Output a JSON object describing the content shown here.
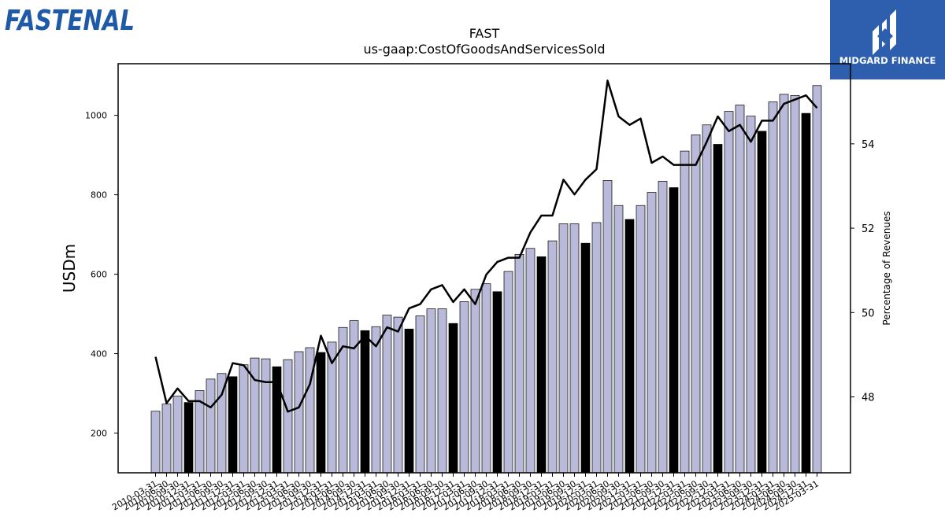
{
  "brand": {
    "left_logo_text": "FASTENAL",
    "right_logo_text": "MIDGARD FINANCE",
    "right_logo_bg": "#2d5fae"
  },
  "chart_data": {
    "type": "bar",
    "title": "FAST",
    "subtitle": "us-gaap:CostOfGoodsAndServicesSold",
    "ylabel": "USDm",
    "y2label": "Percentage of Revenues",
    "ylim": [
      100,
      1130
    ],
    "y2lim": [
      46.2,
      55.9
    ],
    "yticks": [
      200,
      400,
      600,
      800,
      1000
    ],
    "y2ticks": [
      48,
      50,
      52,
      54
    ],
    "bar_color": "#b9b9d9",
    "highlight_color": "#000000",
    "line_color": "#000000",
    "categories": [
      "2010-03-31",
      "2010-06-30",
      "2010-09-30",
      "2010-12-31",
      "2011-03-31",
      "2011-06-30",
      "2011-09-30",
      "2011-12-31",
      "2012-03-31",
      "2012-06-30",
      "2012-09-30",
      "2012-12-31",
      "2013-03-31",
      "2013-06-30",
      "2013-09-30",
      "2013-12-31",
      "2014-03-31",
      "2014-06-30",
      "2014-09-30",
      "2014-12-31",
      "2015-03-31",
      "2015-06-30",
      "2015-09-30",
      "2015-12-31",
      "2016-03-31",
      "2016-06-30",
      "2016-09-30",
      "2016-12-31",
      "2017-03-31",
      "2017-06-30",
      "2017-09-30",
      "2017-12-31",
      "2018-03-31",
      "2018-06-30",
      "2018-09-30",
      "2018-12-31",
      "2019-03-31",
      "2019-06-30",
      "2019-09-30",
      "2019-12-31",
      "2020-03-31",
      "2020-06-30",
      "2020-09-30",
      "2020-12-31",
      "2021-03-31",
      "2021-06-30",
      "2021-09-30",
      "2021-12-31",
      "2022-03-31",
      "2022-06-30",
      "2022-09-30",
      "2022-12-31",
      "2023-03-31",
      "2023-06-30",
      "2023-09-30",
      "2023-12-31",
      "2024-03-31",
      "2024-06-30",
      "2024-09-30",
      "2024-12-31",
      "2025-03-31"
    ],
    "xtick_labels": [
      "2010-03-31",
      "2010-06-30",
      "2010-09-30",
      "2010-12-31",
      "2011-03-31",
      "2011-06-30",
      "2011-09-30",
      "2011-12-31",
      "2012-03-31",
      "2012-06-30",
      "2012-09-30",
      "2012-12-31",
      "2013-03-31",
      "2013-06-30",
      "2013-09-30",
      "2013-12-31",
      "2014-03-31",
      "2014-06-30",
      "2014-09-30",
      "2014-12-31",
      "2015-03-31",
      "2015-06-30",
      "2015-09-30",
      "2015-12-31",
      "2016-03-31",
      "2016-06-30",
      "2016-09-30",
      "2016-12-31",
      "2017-03-31",
      "2017-06-30",
      "2017-09-30",
      "2017-12-31",
      "2018-03-31",
      "2018-06-30",
      "2018-09-30",
      "2018-12-31",
      "2019-03-31",
      "2019-06-30",
      "2019-09-30",
      "2019-12-31",
      "2020-03-31",
      "2020-06-30",
      "2020-09-30",
      "2020-12-31",
      "2021-03-31",
      "2021-06-30",
      "2021-09-30",
      "2021-12-31",
      "2022-03-31",
      "2022-06-30",
      "2022-09-30",
      "2022-12-31",
      "2023-03-31",
      "2023-06-30",
      "2023-09-30",
      "2023-12-31",
      "2024-03-31",
      "2024-06-30",
      "2024-09-30",
      "2024-12-31",
      "2025-03-31"
    ],
    "highlight_every": 4,
    "highlight_offset": 3,
    "series": [
      {
        "type": "bar",
        "values": [
          255,
          273,
          293,
          277,
          307,
          336,
          350,
          342,
          372,
          389,
          387,
          367,
          385,
          405,
          415,
          403,
          429,
          466,
          483,
          458,
          468,
          497,
          492,
          462,
          495,
          513,
          513,
          476,
          531,
          562,
          576,
          556,
          607,
          650,
          665,
          644,
          684,
          727,
          727,
          678,
          730,
          836,
          773,
          738,
          773,
          806,
          834,
          818,
          910,
          951,
          976,
          927,
          1010,
          1026,
          998,
          960,
          1034,
          1053,
          1050,
          1005,
          1075
        ]
      },
      {
        "type": "line",
        "axis": "right",
        "values": [
          48.95,
          47.85,
          48.2,
          47.9,
          47.9,
          47.75,
          48.05,
          48.8,
          48.75,
          48.4,
          48.35,
          48.35,
          47.65,
          47.75,
          48.3,
          49.45,
          48.8,
          49.2,
          49.15,
          49.45,
          49.2,
          49.65,
          49.55,
          50.1,
          50.2,
          50.55,
          50.65,
          50.25,
          50.55,
          50.2,
          50.9,
          51.2,
          51.3,
          51.3,
          51.9,
          52.3,
          52.3,
          53.15,
          52.8,
          53.15,
          53.4,
          55.5,
          54.65,
          54.45,
          54.6,
          53.55,
          53.7,
          53.5,
          53.5,
          53.5,
          54.05,
          54.65,
          54.3,
          54.45,
          54.05,
          54.55,
          54.55,
          54.95,
          55.05,
          55.15,
          54.85
        ]
      }
    ]
  }
}
